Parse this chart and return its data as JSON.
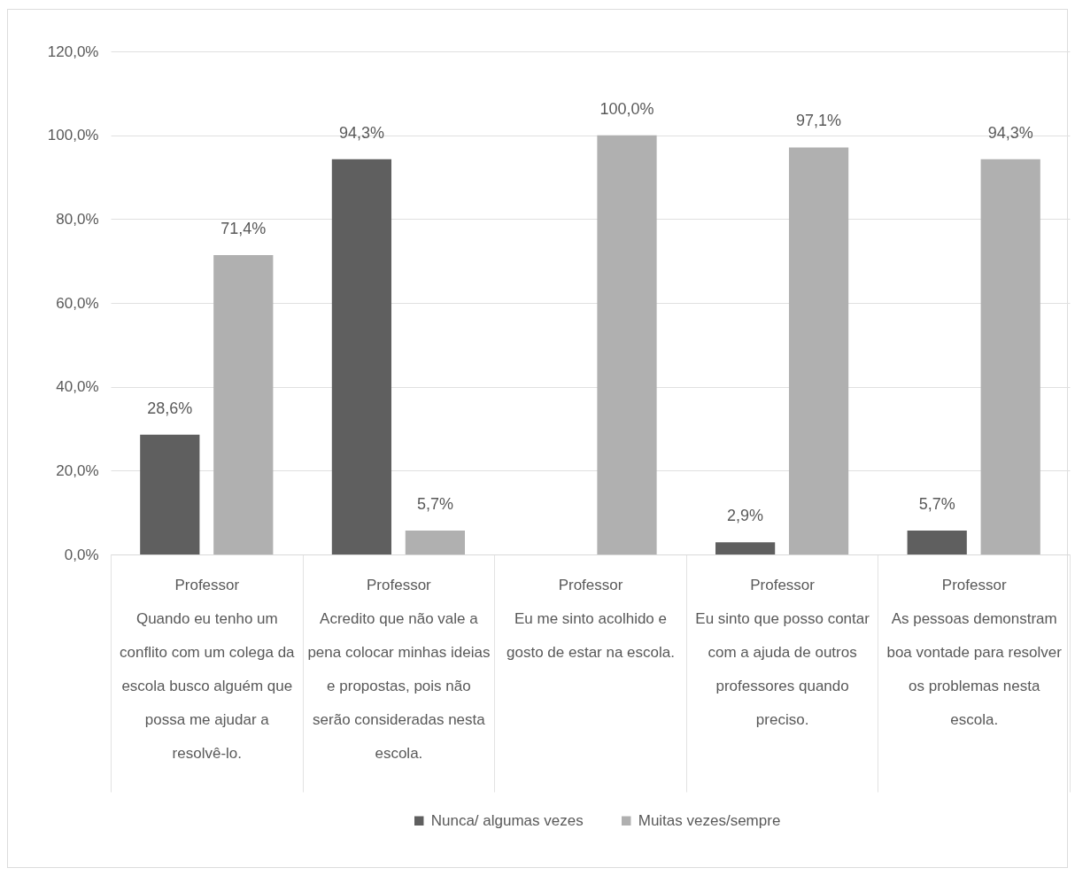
{
  "chart_data": {
    "type": "bar",
    "categories": [
      "Professor\nQuando eu tenho um conflito com um colega da escola busco alguém que possa me ajudar a resolvê-lo.",
      "Professor\nAcredito que não vale a pena colocar minhas ideias e propostas, pois não serão consideradas nesta escola.",
      "Professor\nEu me sinto acolhido e gosto de estar na escola.",
      "Professor\nEu sinto que posso contar com a ajuda de outros professores quando preciso.",
      "Professor\nAs pessoas demonstram boa vontade para resolver os problemas nesta escola."
    ],
    "series": [
      {
        "name": "Nunca/ algumas vezes",
        "color": "#5f5f5f",
        "values": [
          28.6,
          94.3,
          null,
          2.9,
          5.7
        ],
        "value_labels": [
          "28,6%",
          "94,3%",
          null,
          "2,9%",
          "5,7%"
        ]
      },
      {
        "name": "Muitas vezes/sempre",
        "color": "#b0b0b0",
        "values": [
          71.4,
          5.7,
          100,
          97.1,
          94.3
        ],
        "value_labels": [
          "71,4%",
          "5,7%",
          "100,0%",
          "97,1%",
          "94,3%"
        ]
      }
    ],
    "ylim": [
      0,
      120
    ],
    "yticks": [
      {
        "value": 0,
        "label": "0,0%"
      },
      {
        "value": 20,
        "label": "20,0%"
      },
      {
        "value": 40,
        "label": "40,0%"
      },
      {
        "value": 60,
        "label": "60,0%"
      },
      {
        "value": 80,
        "label": "80,0%"
      },
      {
        "value": 100,
        "label": "100,0%"
      },
      {
        "value": 120,
        "label": "120,0%"
      }
    ],
    "grid": "y",
    "legend": "bottom"
  }
}
